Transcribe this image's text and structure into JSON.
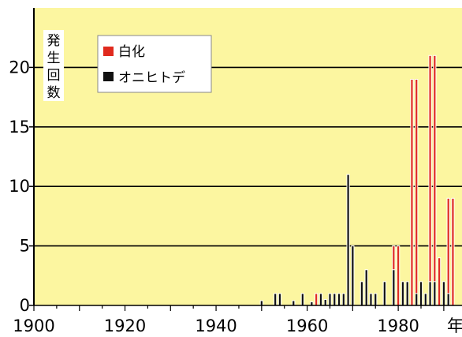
{
  "chart_data": {
    "type": "bar",
    "title": "",
    "ylabel": "発生回数",
    "xlabel": "年",
    "xlim": [
      1900,
      1994
    ],
    "ylim": [
      0,
      25
    ],
    "x_ticks": [
      "1900",
      "1920",
      "1940",
      "1960",
      "1980"
    ],
    "y_ticks": [
      "0",
      "5",
      "10",
      "15",
      "20"
    ],
    "grid": "horizontal",
    "legend_position": "top-left",
    "colors": {
      "plot_background": "#fcf6a0",
      "白化": "#e02a1e",
      "オニヒトデ": "#111111"
    },
    "series": [
      {
        "name": "白化",
        "points": [
          {
            "year": 1962,
            "value": 1
          },
          {
            "year": 1979,
            "value": 5
          },
          {
            "year": 1980,
            "value": 5
          },
          {
            "year": 1983,
            "value": 19
          },
          {
            "year": 1984,
            "value": 19
          },
          {
            "year": 1987,
            "value": 21
          },
          {
            "year": 1988,
            "value": 21
          },
          {
            "year": 1989,
            "value": 4
          },
          {
            "year": 1991,
            "value": 9
          },
          {
            "year": 1992,
            "value": 9
          }
        ]
      },
      {
        "name": "オニヒトデ",
        "points": [
          {
            "year": 1950,
            "value": 0.4
          },
          {
            "year": 1953,
            "value": 1
          },
          {
            "year": 1954,
            "value": 1
          },
          {
            "year": 1957,
            "value": 0.4
          },
          {
            "year": 1959,
            "value": 1
          },
          {
            "year": 1961,
            "value": 0.3
          },
          {
            "year": 1963,
            "value": 1
          },
          {
            "year": 1964,
            "value": 0.5
          },
          {
            "year": 1965,
            "value": 1
          },
          {
            "year": 1966,
            "value": 1
          },
          {
            "year": 1967,
            "value": 1
          },
          {
            "year": 1968,
            "value": 1
          },
          {
            "year": 1969,
            "value": 11
          },
          {
            "year": 1970,
            "value": 5
          },
          {
            "year": 1972,
            "value": 2
          },
          {
            "year": 1973,
            "value": 3
          },
          {
            "year": 1974,
            "value": 1
          },
          {
            "year": 1975,
            "value": 1
          },
          {
            "year": 1977,
            "value": 2
          },
          {
            "year": 1979,
            "value": 3
          },
          {
            "year": 1981,
            "value": 2
          },
          {
            "year": 1982,
            "value": 2
          },
          {
            "year": 1984,
            "value": 1
          },
          {
            "year": 1985,
            "value": 2
          },
          {
            "year": 1986,
            "value": 1
          },
          {
            "year": 1987,
            "value": 2
          },
          {
            "year": 1988,
            "value": 2
          },
          {
            "year": 1990,
            "value": 2
          },
          {
            "year": 1991,
            "value": 1
          }
        ]
      }
    ]
  }
}
